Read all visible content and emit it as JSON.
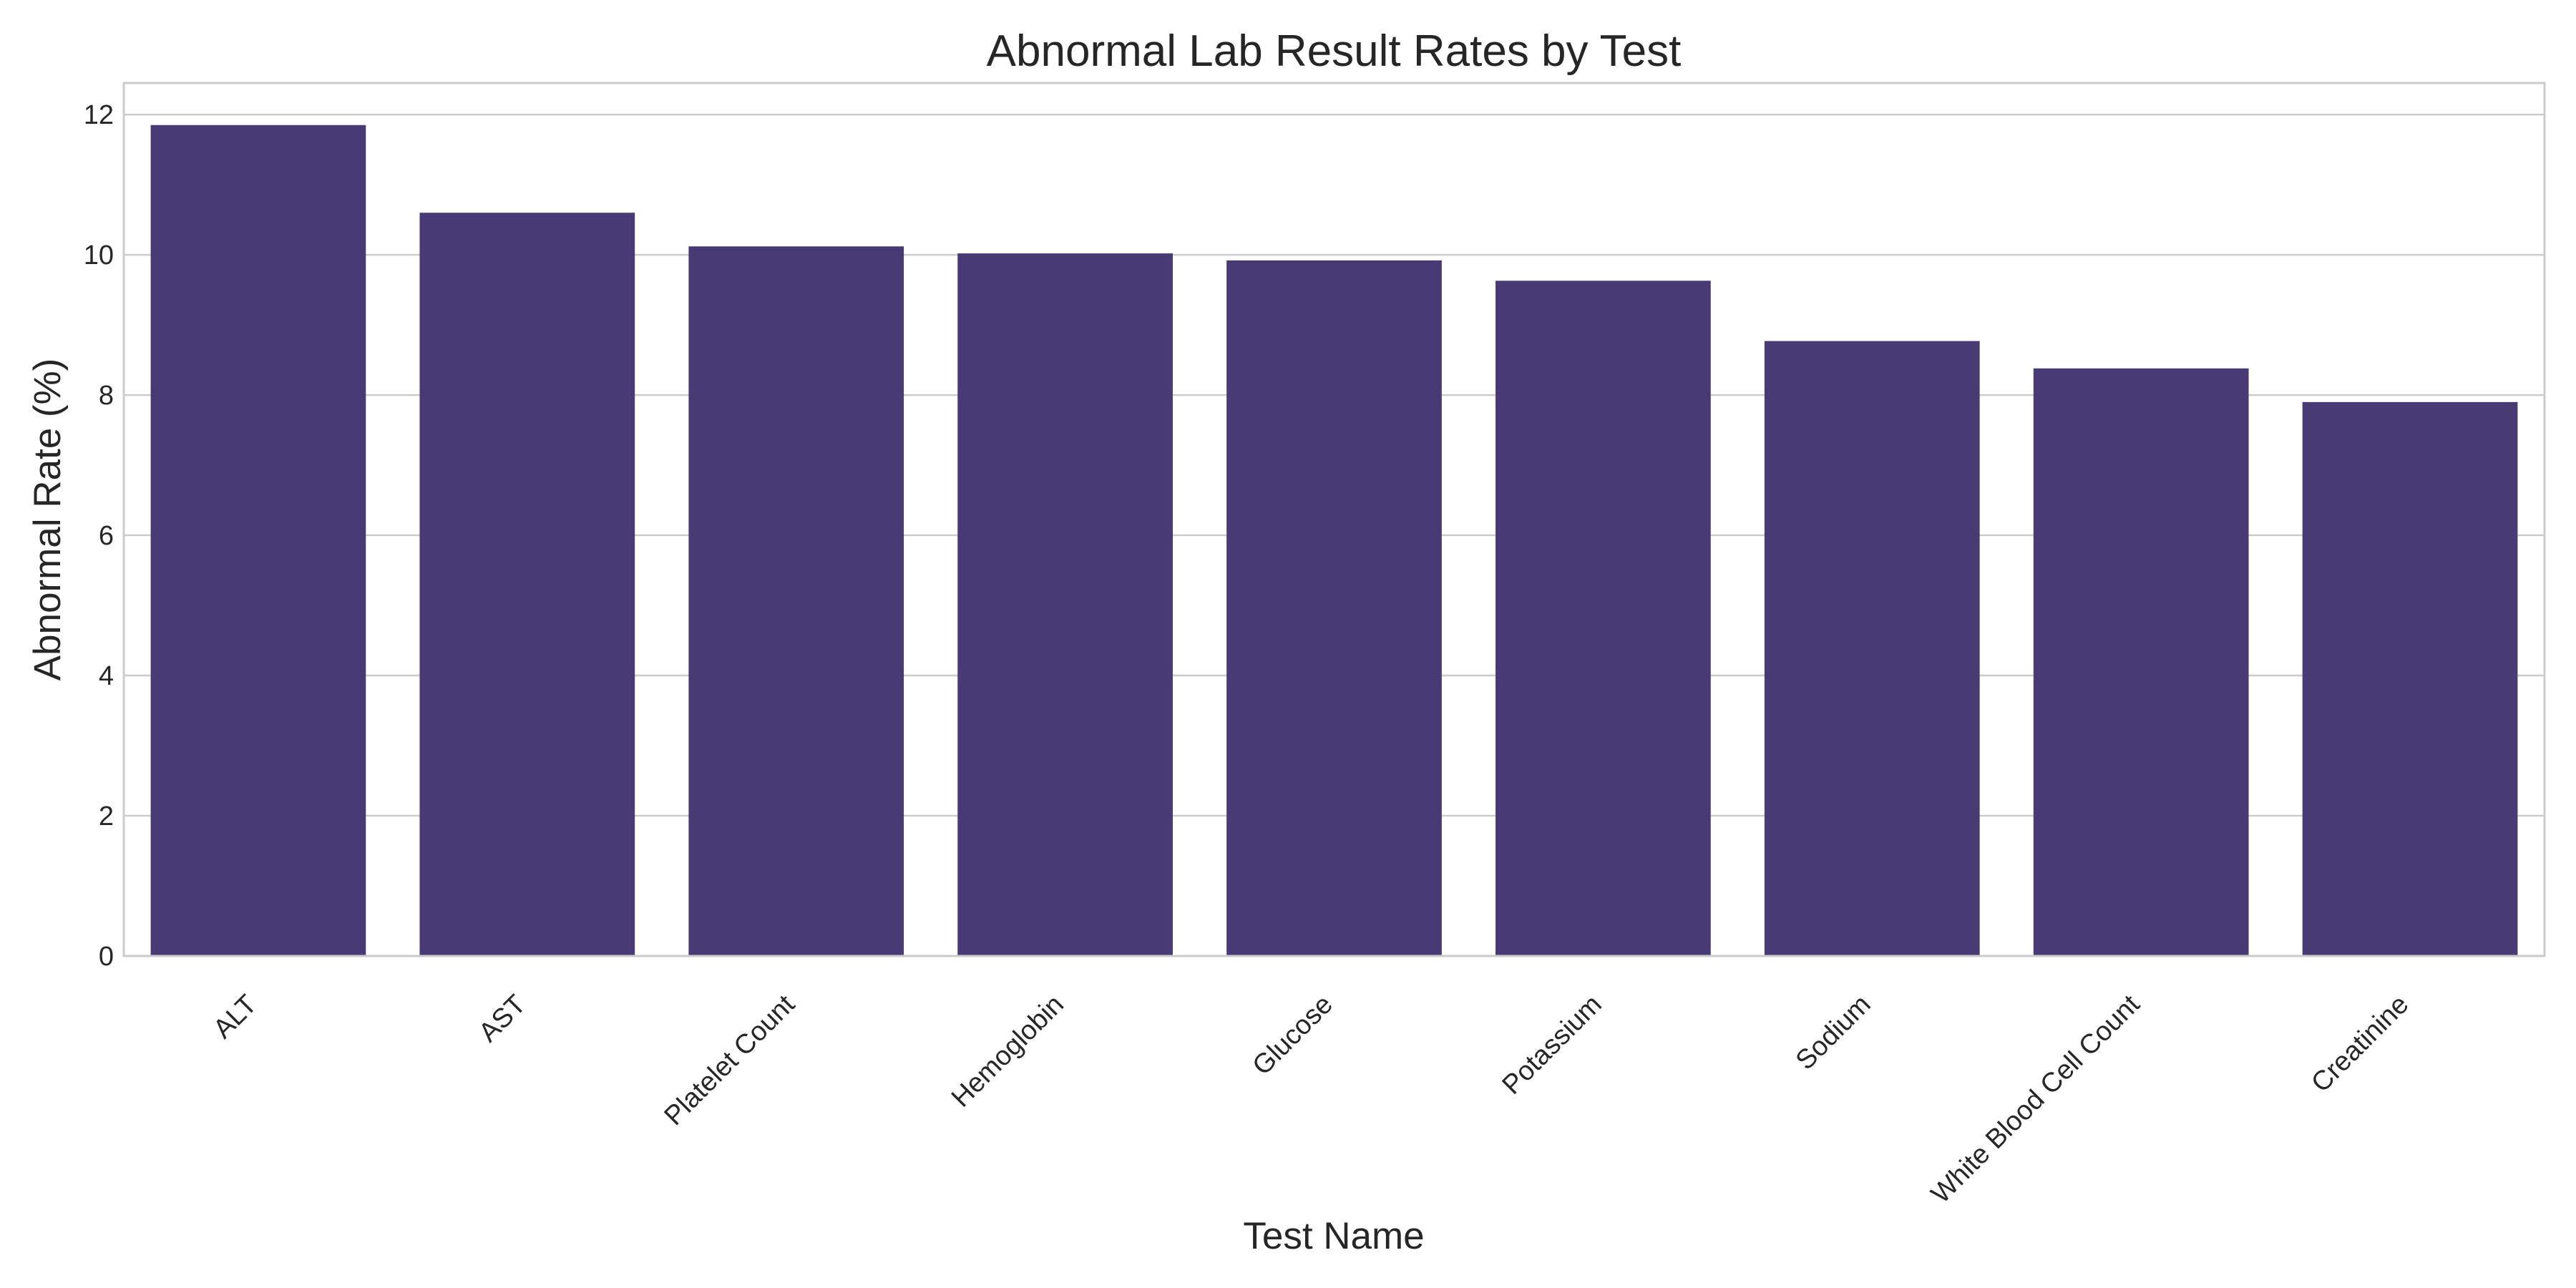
{
  "chart_data": {
    "type": "bar",
    "title": "Abnormal Lab Result Rates by Test",
    "xlabel": "Test Name",
    "ylabel": "Abnormal Rate (%)",
    "categories": [
      "ALT",
      "AST",
      "Platelet Count",
      "Hemoglobin",
      "Glucose",
      "Potassium",
      "Sodium",
      "White Blood Cell Count",
      "Creatinine"
    ],
    "values": [
      11.85,
      10.6,
      10.12,
      10.02,
      9.92,
      9.63,
      8.77,
      8.38,
      7.9
    ],
    "ylim": [
      0,
      12.45
    ],
    "yticks": [
      0,
      2,
      4,
      6,
      8,
      10,
      12
    ],
    "grid": true,
    "bar_color": "#483a75"
  }
}
